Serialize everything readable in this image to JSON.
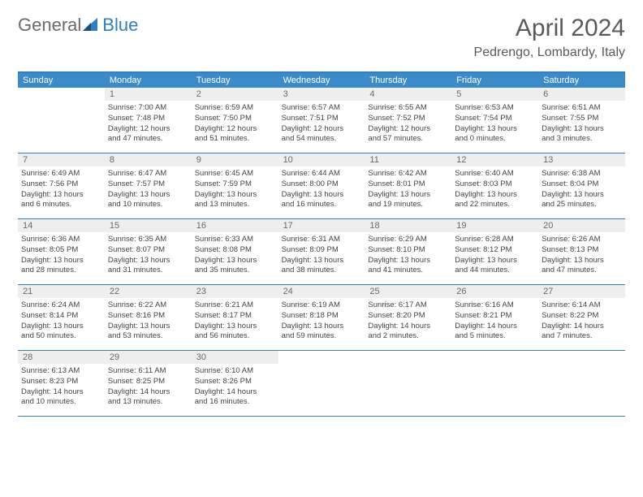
{
  "logo": {
    "part1": "General",
    "part2": "Blue"
  },
  "title": "April 2024",
  "location": "Pedrengo, Lombardy, Italy",
  "colors": {
    "header_bg": "#3b8bc9",
    "border": "#2f7fc2",
    "daynum_bg": "#eeeeee",
    "text": "#444",
    "title_text": "#5a5a5a"
  },
  "weekdays": [
    "Sunday",
    "Monday",
    "Tuesday",
    "Wednesday",
    "Thursday",
    "Friday",
    "Saturday"
  ],
  "weeks": [
    [
      {
        "n": "",
        "sr": "",
        "ss": "",
        "dl1": "",
        "dl2": ""
      },
      {
        "n": "1",
        "sr": "Sunrise: 7:00 AM",
        "ss": "Sunset: 7:48 PM",
        "dl1": "Daylight: 12 hours",
        "dl2": "and 47 minutes."
      },
      {
        "n": "2",
        "sr": "Sunrise: 6:59 AM",
        "ss": "Sunset: 7:50 PM",
        "dl1": "Daylight: 12 hours",
        "dl2": "and 51 minutes."
      },
      {
        "n": "3",
        "sr": "Sunrise: 6:57 AM",
        "ss": "Sunset: 7:51 PM",
        "dl1": "Daylight: 12 hours",
        "dl2": "and 54 minutes."
      },
      {
        "n": "4",
        "sr": "Sunrise: 6:55 AM",
        "ss": "Sunset: 7:52 PM",
        "dl1": "Daylight: 12 hours",
        "dl2": "and 57 minutes."
      },
      {
        "n": "5",
        "sr": "Sunrise: 6:53 AM",
        "ss": "Sunset: 7:54 PM",
        "dl1": "Daylight: 13 hours",
        "dl2": "and 0 minutes."
      },
      {
        "n": "6",
        "sr": "Sunrise: 6:51 AM",
        "ss": "Sunset: 7:55 PM",
        "dl1": "Daylight: 13 hours",
        "dl2": "and 3 minutes."
      }
    ],
    [
      {
        "n": "7",
        "sr": "Sunrise: 6:49 AM",
        "ss": "Sunset: 7:56 PM",
        "dl1": "Daylight: 13 hours",
        "dl2": "and 6 minutes."
      },
      {
        "n": "8",
        "sr": "Sunrise: 6:47 AM",
        "ss": "Sunset: 7:57 PM",
        "dl1": "Daylight: 13 hours",
        "dl2": "and 10 minutes."
      },
      {
        "n": "9",
        "sr": "Sunrise: 6:45 AM",
        "ss": "Sunset: 7:59 PM",
        "dl1": "Daylight: 13 hours",
        "dl2": "and 13 minutes."
      },
      {
        "n": "10",
        "sr": "Sunrise: 6:44 AM",
        "ss": "Sunset: 8:00 PM",
        "dl1": "Daylight: 13 hours",
        "dl2": "and 16 minutes."
      },
      {
        "n": "11",
        "sr": "Sunrise: 6:42 AM",
        "ss": "Sunset: 8:01 PM",
        "dl1": "Daylight: 13 hours",
        "dl2": "and 19 minutes."
      },
      {
        "n": "12",
        "sr": "Sunrise: 6:40 AM",
        "ss": "Sunset: 8:03 PM",
        "dl1": "Daylight: 13 hours",
        "dl2": "and 22 minutes."
      },
      {
        "n": "13",
        "sr": "Sunrise: 6:38 AM",
        "ss": "Sunset: 8:04 PM",
        "dl1": "Daylight: 13 hours",
        "dl2": "and 25 minutes."
      }
    ],
    [
      {
        "n": "14",
        "sr": "Sunrise: 6:36 AM",
        "ss": "Sunset: 8:05 PM",
        "dl1": "Daylight: 13 hours",
        "dl2": "and 28 minutes."
      },
      {
        "n": "15",
        "sr": "Sunrise: 6:35 AM",
        "ss": "Sunset: 8:07 PM",
        "dl1": "Daylight: 13 hours",
        "dl2": "and 31 minutes."
      },
      {
        "n": "16",
        "sr": "Sunrise: 6:33 AM",
        "ss": "Sunset: 8:08 PM",
        "dl1": "Daylight: 13 hours",
        "dl2": "and 35 minutes."
      },
      {
        "n": "17",
        "sr": "Sunrise: 6:31 AM",
        "ss": "Sunset: 8:09 PM",
        "dl1": "Daylight: 13 hours",
        "dl2": "and 38 minutes."
      },
      {
        "n": "18",
        "sr": "Sunrise: 6:29 AM",
        "ss": "Sunset: 8:10 PM",
        "dl1": "Daylight: 13 hours",
        "dl2": "and 41 minutes."
      },
      {
        "n": "19",
        "sr": "Sunrise: 6:28 AM",
        "ss": "Sunset: 8:12 PM",
        "dl1": "Daylight: 13 hours",
        "dl2": "and 44 minutes."
      },
      {
        "n": "20",
        "sr": "Sunrise: 6:26 AM",
        "ss": "Sunset: 8:13 PM",
        "dl1": "Daylight: 13 hours",
        "dl2": "and 47 minutes."
      }
    ],
    [
      {
        "n": "21",
        "sr": "Sunrise: 6:24 AM",
        "ss": "Sunset: 8:14 PM",
        "dl1": "Daylight: 13 hours",
        "dl2": "and 50 minutes."
      },
      {
        "n": "22",
        "sr": "Sunrise: 6:22 AM",
        "ss": "Sunset: 8:16 PM",
        "dl1": "Daylight: 13 hours",
        "dl2": "and 53 minutes."
      },
      {
        "n": "23",
        "sr": "Sunrise: 6:21 AM",
        "ss": "Sunset: 8:17 PM",
        "dl1": "Daylight: 13 hours",
        "dl2": "and 56 minutes."
      },
      {
        "n": "24",
        "sr": "Sunrise: 6:19 AM",
        "ss": "Sunset: 8:18 PM",
        "dl1": "Daylight: 13 hours",
        "dl2": "and 59 minutes."
      },
      {
        "n": "25",
        "sr": "Sunrise: 6:17 AM",
        "ss": "Sunset: 8:20 PM",
        "dl1": "Daylight: 14 hours",
        "dl2": "and 2 minutes."
      },
      {
        "n": "26",
        "sr": "Sunrise: 6:16 AM",
        "ss": "Sunset: 8:21 PM",
        "dl1": "Daylight: 14 hours",
        "dl2": "and 5 minutes."
      },
      {
        "n": "27",
        "sr": "Sunrise: 6:14 AM",
        "ss": "Sunset: 8:22 PM",
        "dl1": "Daylight: 14 hours",
        "dl2": "and 7 minutes."
      }
    ],
    [
      {
        "n": "28",
        "sr": "Sunrise: 6:13 AM",
        "ss": "Sunset: 8:23 PM",
        "dl1": "Daylight: 14 hours",
        "dl2": "and 10 minutes."
      },
      {
        "n": "29",
        "sr": "Sunrise: 6:11 AM",
        "ss": "Sunset: 8:25 PM",
        "dl1": "Daylight: 14 hours",
        "dl2": "and 13 minutes."
      },
      {
        "n": "30",
        "sr": "Sunrise: 6:10 AM",
        "ss": "Sunset: 8:26 PM",
        "dl1": "Daylight: 14 hours",
        "dl2": "and 16 minutes."
      },
      {
        "n": "",
        "sr": "",
        "ss": "",
        "dl1": "",
        "dl2": ""
      },
      {
        "n": "",
        "sr": "",
        "ss": "",
        "dl1": "",
        "dl2": ""
      },
      {
        "n": "",
        "sr": "",
        "ss": "",
        "dl1": "",
        "dl2": ""
      },
      {
        "n": "",
        "sr": "",
        "ss": "",
        "dl1": "",
        "dl2": ""
      }
    ]
  ]
}
